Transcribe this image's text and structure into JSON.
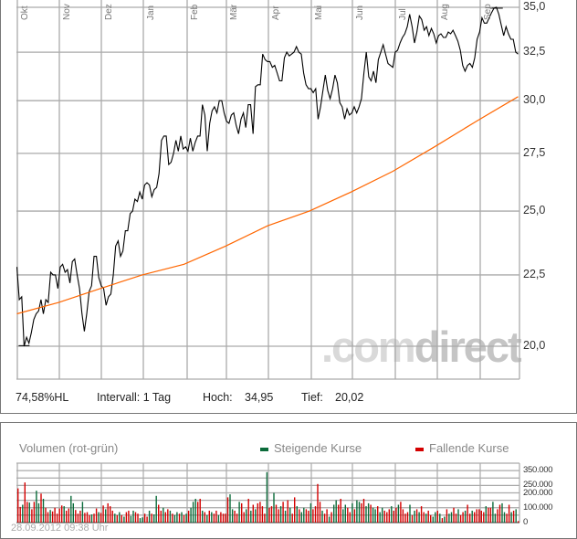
{
  "chart_data": [
    {
      "type": "line",
      "scale": "log",
      "ylim": [
        18.95,
        35.4
      ],
      "grid": true,
      "x_ticks": [
        "Okt",
        "Nov",
        "Dez",
        "Jan",
        "Feb",
        "Mär",
        "Apr",
        "Mai",
        "Jun",
        "Jul",
        "Aug",
        "Sep"
      ],
      "y_ticks": [
        {
          "value": 35.0,
          "label": "35,0"
        },
        {
          "value": 32.5,
          "label": "32,5"
        },
        {
          "value": 30.0,
          "label": "30,0"
        },
        {
          "value": 27.5,
          "label": "27,5"
        },
        {
          "value": 25.0,
          "label": "25,0"
        },
        {
          "value": 22.5,
          "label": "22,5"
        },
        {
          "value": 20.0,
          "label": "20,0"
        }
      ],
      "series": [
        {
          "color": "#000000",
          "values": [
            22.8,
            21.6,
            21.7,
            20.0,
            20.3,
            20.1,
            20.45,
            20.9,
            21.1,
            21.2,
            21.6,
            21.1,
            21.6,
            21.5,
            22.6,
            22.5,
            22.5,
            22.0,
            22.8,
            22.9,
            22.6,
            22.7,
            22.2,
            23.0,
            23.1,
            22.5,
            22.0,
            21.1,
            20.5,
            21.1,
            21.9,
            22.1,
            23.2,
            23.2,
            22.4,
            22.1,
            22.0,
            21.4,
            21.7,
            21.8,
            22.5,
            23.6,
            23.8,
            23.2,
            23.4,
            24.2,
            24.2,
            24.9,
            25.0,
            25.5,
            25.4,
            25.8,
            25.5,
            26.1,
            26.2,
            26.1,
            25.6,
            25.9,
            26.0,
            26.6,
            28.1,
            28.3,
            28.3,
            27.0,
            27.1,
            27.5,
            28.1,
            27.6,
            28.3,
            27.7,
            27.8,
            27.6,
            28.2,
            27.6,
            28.0,
            28.3,
            28.3,
            29.8,
            29.3,
            27.6,
            28.9,
            29.5,
            29.7,
            29.4,
            30.0,
            30.0,
            29.4,
            29.0,
            28.9,
            29.3,
            29.4,
            28.8,
            28.4,
            29.1,
            29.4,
            28.7,
            29.8,
            29.8,
            28.4,
            30.7,
            30.8,
            30.8,
            32.4,
            32.1,
            32.0,
            32.0,
            31.7,
            31.8,
            31.4,
            31.0,
            31.0,
            32.2,
            32.5,
            32.3,
            32.4,
            32.5,
            32.8,
            32.5,
            32.4,
            31.4,
            30.8,
            30.6,
            30.6,
            30.4,
            30.6,
            29.1,
            29.7,
            30.5,
            31.3,
            30.5,
            30.1,
            30.6,
            31.3,
            30.9,
            29.9,
            29.7,
            29.1,
            29.6,
            29.3,
            29.4,
            29.7,
            29.4,
            29.7,
            30.1,
            31.4,
            32.5,
            31.2,
            31.0,
            31.5,
            30.9,
            32.1,
            32.5,
            32.9,
            32.4,
            31.9,
            31.8,
            31.7,
            32.5,
            32.6,
            33.0,
            33.3,
            33.5,
            33.9,
            34.6,
            33.9,
            33.0,
            33.6,
            34.5,
            34.3,
            33.7,
            33.9,
            33.4,
            33.8,
            33.5,
            33.0,
            33.4,
            33.5,
            33.3,
            33.3,
            33.6,
            33.5,
            33.7,
            33.4,
            33.1,
            32.6,
            31.8,
            31.5,
            31.8,
            31.9,
            31.7,
            32.2,
            33.2,
            33.6,
            34.4,
            34.1,
            34.1,
            34.4,
            34.7,
            34.95,
            35.0,
            34.6,
            34.0,
            33.4,
            33.9,
            33.5,
            33.2,
            33.2,
            32.5,
            32.4
          ]
        },
        {
          "color": "#ff6600",
          "values": [
            21.1,
            21.5,
            22.0,
            22.5,
            22.9,
            23.6,
            24.4,
            25.0,
            25.8,
            26.7,
            27.8,
            29.0,
            30.2
          ]
        }
      ],
      "high": 34.95,
      "low": 20.02
    },
    {
      "type": "bar",
      "title": "Volumen (rot-grün)",
      "ylim": [
        0,
        400000
      ],
      "y_ticks": [
        {
          "value": 0,
          "label": "0"
        },
        {
          "value": 100000,
          "label": "100.000"
        },
        {
          "value": 200000,
          "label": "200.000"
        },
        {
          "value": 250000,
          "label": "250.000"
        },
        {
          "value": 350000,
          "label": "350.000"
        }
      ],
      "legend": [
        {
          "label": "Steigende Kurse",
          "color": "#0b6b3a"
        },
        {
          "label": "Fallende Kurse",
          "color": "#d40000"
        }
      ],
      "values": [
        230000,
        105000,
        120000,
        270000,
        140000,
        135000,
        90000,
        140000,
        215000,
        130000,
        195000,
        160000,
        100000,
        70000,
        85000,
        75000,
        100000,
        60000,
        95000,
        115000,
        110000,
        80000,
        95000,
        180000,
        130000,
        85000,
        60000,
        80000,
        140000,
        65000,
        70000,
        50000,
        55000,
        60000,
        95000,
        70000,
        65000,
        115000,
        90000,
        130000,
        110000,
        80000,
        60000,
        50000,
        70000,
        50000,
        40000,
        70000,
        80000,
        45000,
        80000,
        70000,
        60000,
        30000,
        35000,
        60000,
        40000,
        80000,
        60000,
        55000,
        180000,
        120000,
        80000,
        100000,
        70000,
        90000,
        80000,
        60000,
        50000,
        70000,
        60000,
        70000,
        50000,
        60000,
        80000,
        100000,
        140000,
        160000,
        140000,
        160000,
        80000,
        70000,
        50000,
        80000,
        70000,
        60000,
        80000,
        50000,
        70000,
        60000,
        60000,
        170000,
        190000,
        90000,
        80000,
        60000,
        140000,
        130000,
        70000,
        90000,
        160000,
        80000,
        120000,
        90000,
        130000,
        140000,
        110000,
        60000,
        340000,
        100000,
        110000,
        200000,
        120000,
        90000,
        110000,
        140000,
        80000,
        150000,
        100000,
        60000,
        170000,
        110000,
        90000,
        70000,
        100000,
        90000,
        80000,
        130000,
        90000,
        110000,
        260000,
        140000,
        80000,
        60000,
        90000,
        40000,
        70000,
        120000,
        150000,
        120000,
        160000,
        90000,
        120000,
        100000,
        70000,
        130000,
        90000,
        150000,
        140000,
        130000,
        160000,
        110000,
        130000,
        120000,
        100000,
        90000,
        110000,
        70000,
        100000,
        80000,
        70000,
        90000,
        110000,
        80000,
        100000,
        120000,
        140000,
        90000,
        60000,
        70000,
        120000,
        50000,
        80000,
        90000,
        70000,
        110000,
        70000,
        60000,
        80000,
        50000,
        40000,
        70000,
        80000,
        60000,
        30000,
        40000,
        90000,
        60000,
        70000,
        100000,
        60000,
        90000,
        50000,
        70000,
        80000,
        120000,
        60000,
        80000,
        70000,
        90000,
        90000,
        80000,
        70000,
        110000,
        100000,
        100000,
        140000,
        60000,
        90000,
        120000,
        130000,
        70000,
        60000,
        120000,
        70000,
        80000,
        90000,
        10000
      ],
      "directions": "dduddudduududdudddddudduudddudddudduddudddudududduudduudduduuddudduduudududuuuddudududdudddduudduddudududdddudduddudududduduudduddddudduduudduudduduudduuduuduudddudduddddudududdudduudududuuddudduddudddddudduudduuddudududddduudddd"
    }
  ],
  "stats": {
    "hl_label": "74,58%HL",
    "interval_label": "Intervall: 1 Tag",
    "high_label": "Hoch:",
    "high_value": "34,95",
    "low_label": "Tief:",
    "low_value": "20,02"
  },
  "watermark": {
    "part1": ".com",
    "part2": "direct"
  },
  "timestamp": "28.09.2012 09:38 Uhr",
  "colors": {
    "grid": "#aaaaaa",
    "price": "#000000",
    "average": "#ff6600",
    "up": "#0b6b3a",
    "down": "#d40000"
  }
}
